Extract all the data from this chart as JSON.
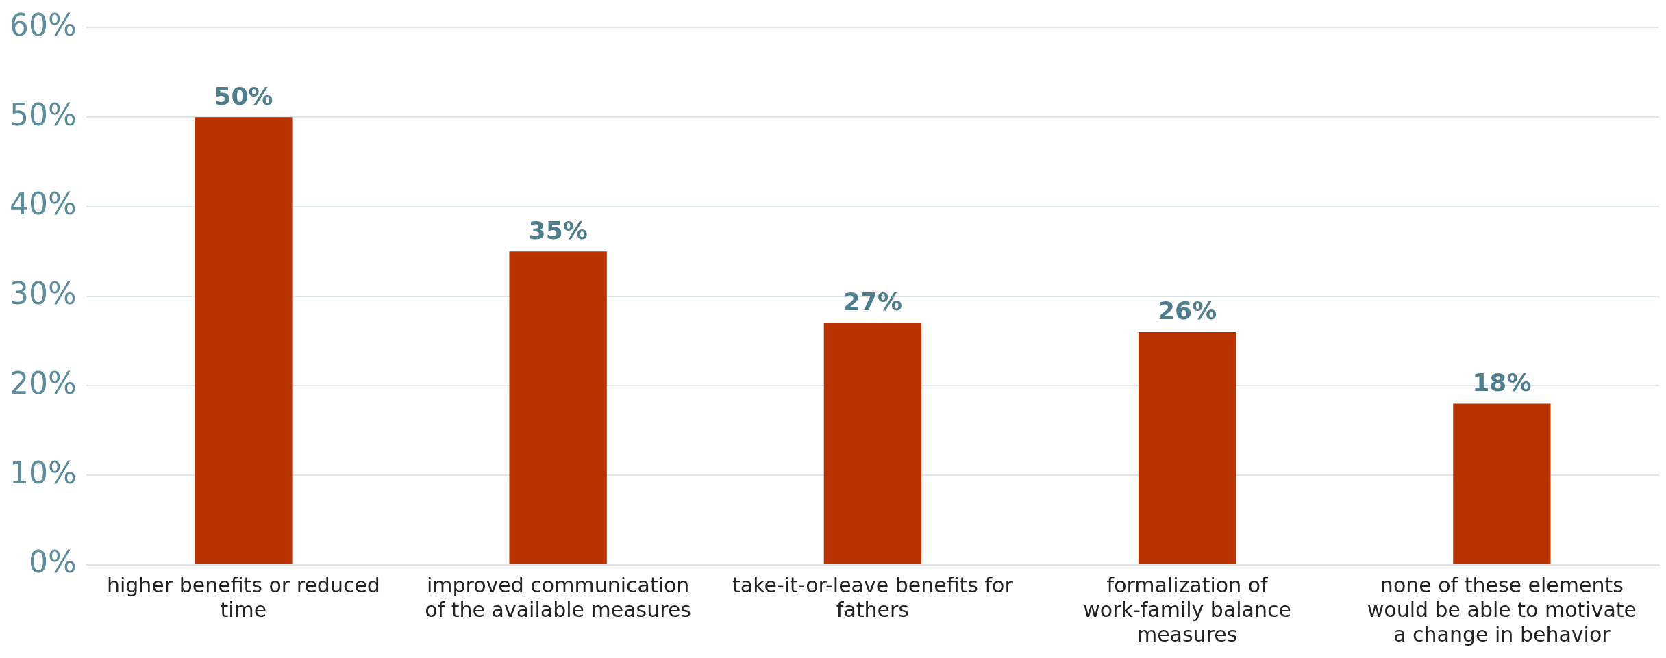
{
  "chart_data": {
    "type": "bar",
    "categories": [
      "higher benefits or reduced time",
      "improved communication of the available measures",
      "take-it-or-leave benefits for fathers",
      "formalization of work-family balance measures",
      "none of these elements would be able to motivate a change in behavior"
    ],
    "values": [
      50,
      35,
      27,
      26,
      18
    ],
    "color": "#b83300",
    "ylim": [
      0,
      60
    ],
    "yticks": [
      {
        "value": 0,
        "label": "0%"
      },
      {
        "value": 10,
        "label": "10%"
      },
      {
        "value": 20,
        "label": "20%"
      },
      {
        "value": 30,
        "label": "30%"
      },
      {
        "value": 40,
        "label": "40%"
      },
      {
        "value": 50,
        "label": "50%"
      },
      {
        "value": 60,
        "label": "60%"
      }
    ],
    "value_labels": [
      "50%",
      "35%",
      "27%",
      "26%",
      "18%"
    ],
    "grid": "y",
    "legend": false
  }
}
